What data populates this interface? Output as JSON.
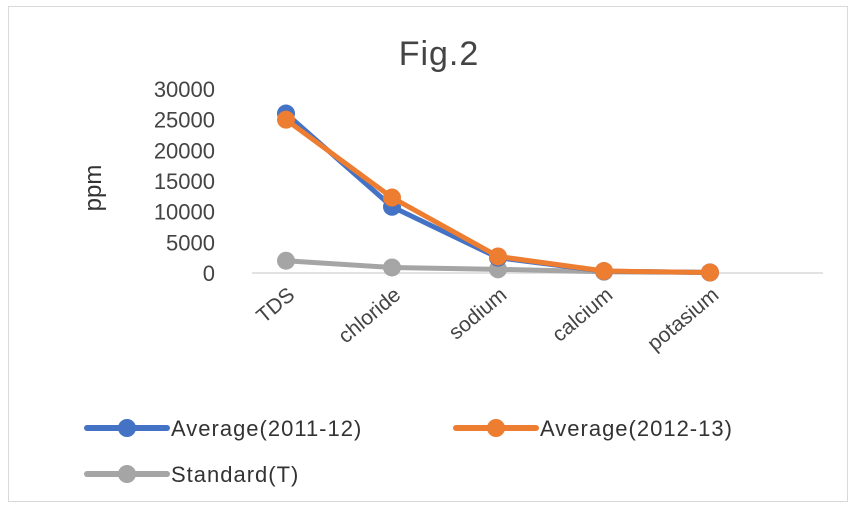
{
  "chart_data": {
    "type": "line",
    "title": "Fig.2",
    "xlabel": "",
    "ylabel": "ppm",
    "categories": [
      "TDS",
      "chloride",
      "sodium",
      "calcium",
      "potasium"
    ],
    "ylim": [
      0,
      30000
    ],
    "yticks": [
      "0",
      "5000",
      "10000",
      "15000",
      "20000",
      "25000",
      "30000"
    ],
    "grid": false,
    "legend_position": "bottom",
    "series": [
      {
        "name": "Average(2011-12)",
        "color": "#4472c4",
        "values": [
          26000,
          10800,
          2500,
          300,
          80
        ]
      },
      {
        "name": "Average(2012-13)",
        "color": "#ed7d31",
        "values": [
          25000,
          12300,
          2700,
          320,
          90
        ]
      },
      {
        "name": "Standard(T)",
        "color": "#a5a5a5",
        "values": [
          2000,
          900,
          600,
          200,
          100
        ]
      }
    ]
  }
}
